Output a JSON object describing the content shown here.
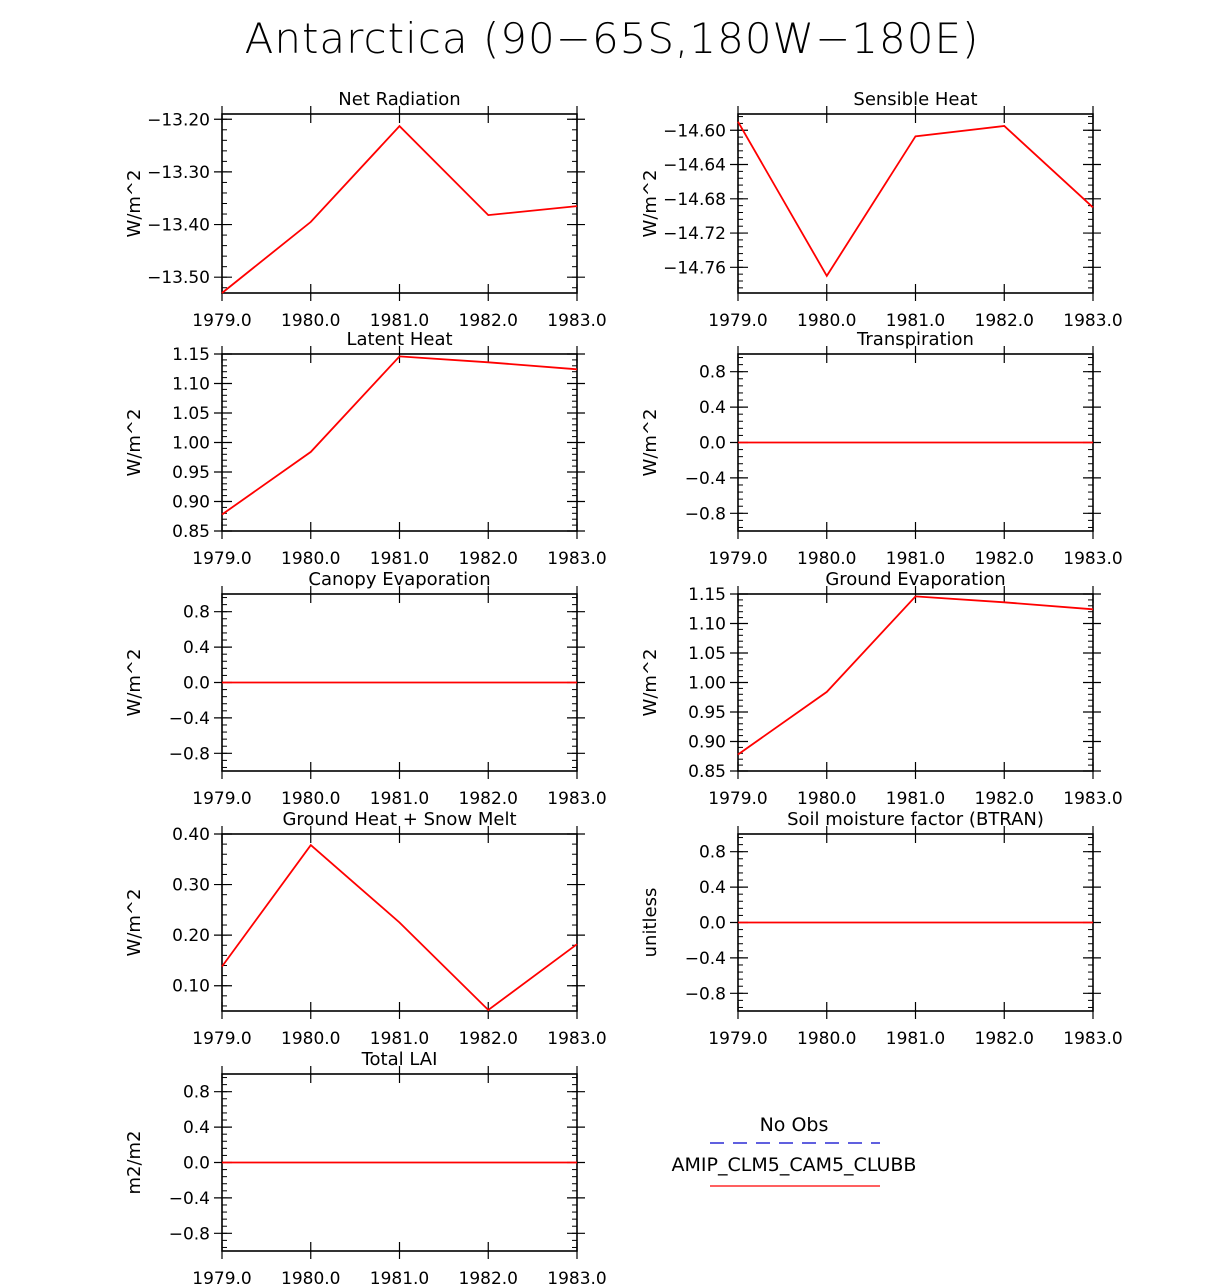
{
  "title": "Antarctica (90−65S,180W−180E)",
  "colors": {
    "series": "#ff0000",
    "obs": "#0000cc",
    "axis": "#000000"
  },
  "legend": {
    "obs_label": "No Obs",
    "model_label": "AMIP_CLM5_CAM5_CLUBB"
  },
  "chart_data": [
    {
      "type": "line",
      "title": "Net Radiation",
      "ylabel": "W/m^2",
      "x": [
        1979,
        1980,
        1981,
        1982,
        1983
      ],
      "xticks": [
        "1979.0",
        "1980.0",
        "1981.0",
        "1982.0",
        "1983.0"
      ],
      "ylim": [
        -13.53,
        -13.19
      ],
      "yticks": [
        -13.5,
        -13.4,
        -13.3,
        -13.2
      ],
      "ytick_labels": [
        "−13.50",
        "−13.40",
        "−13.30",
        "−13.20"
      ],
      "series": [
        {
          "values": [
            -13.53,
            -13.395,
            -13.213,
            -13.382,
            -13.365
          ]
        }
      ]
    },
    {
      "type": "line",
      "title": "Sensible Heat",
      "ylabel": "W/m^2",
      "x": [
        1979,
        1980,
        1981,
        1982,
        1983
      ],
      "xticks": [
        "1979.0",
        "1980.0",
        "1981.0",
        "1982.0",
        "1983.0"
      ],
      "ylim": [
        -14.79,
        -14.581
      ],
      "yticks": [
        -14.76,
        -14.72,
        -14.68,
        -14.64,
        -14.6
      ],
      "ytick_labels": [
        "−14.76",
        "−14.72",
        "−14.68",
        "−14.64",
        "−14.60"
      ],
      "series": [
        {
          "values": [
            -14.59,
            -14.77,
            -14.607,
            -14.595,
            -14.69
          ]
        }
      ]
    },
    {
      "type": "line",
      "title": "Latent Heat",
      "ylabel": "W/m^2",
      "x": [
        1979,
        1980,
        1981,
        1982,
        1983
      ],
      "xticks": [
        "1979.0",
        "1980.0",
        "1981.0",
        "1982.0",
        "1983.0"
      ],
      "ylim": [
        0.85,
        1.15
      ],
      "yticks": [
        0.85,
        0.9,
        0.95,
        1.0,
        1.05,
        1.1,
        1.15
      ],
      "ytick_labels": [
        "0.85",
        "0.90",
        "0.95",
        "1.00",
        "1.05",
        "1.10",
        "1.15"
      ],
      "series": [
        {
          "values": [
            0.878,
            0.984,
            1.146,
            1.136,
            1.124
          ]
        }
      ]
    },
    {
      "type": "line",
      "title": "Transpiration",
      "ylabel": "W/m^2",
      "x": [
        1979,
        1980,
        1981,
        1982,
        1983
      ],
      "xticks": [
        "1979.0",
        "1980.0",
        "1981.0",
        "1982.0",
        "1983.0"
      ],
      "ylim": [
        -1.0,
        1.0
      ],
      "yticks": [
        -0.8,
        -0.4,
        0.0,
        0.4,
        0.8
      ],
      "ytick_labels": [
        "−0.8",
        "−0.4",
        "0.0",
        "0.4",
        "0.8"
      ],
      "series": [
        {
          "values": [
            0,
            0,
            0,
            0,
            0
          ]
        }
      ]
    },
    {
      "type": "line",
      "title": "Canopy Evaporation",
      "ylabel": "W/m^2",
      "x": [
        1979,
        1980,
        1981,
        1982,
        1983
      ],
      "xticks": [
        "1979.0",
        "1980.0",
        "1981.0",
        "1982.0",
        "1983.0"
      ],
      "ylim": [
        -1.0,
        1.0
      ],
      "yticks": [
        -0.8,
        -0.4,
        0.0,
        0.4,
        0.8
      ],
      "ytick_labels": [
        "−0.8",
        "−0.4",
        "0.0",
        "0.4",
        "0.8"
      ],
      "series": [
        {
          "values": [
            0,
            0,
            0,
            0,
            0
          ]
        }
      ]
    },
    {
      "type": "line",
      "title": "Ground Evaporation",
      "ylabel": "W/m^2",
      "x": [
        1979,
        1980,
        1981,
        1982,
        1983
      ],
      "xticks": [
        "1979.0",
        "1980.0",
        "1981.0",
        "1982.0",
        "1983.0"
      ],
      "ylim": [
        0.85,
        1.15
      ],
      "yticks": [
        0.85,
        0.9,
        0.95,
        1.0,
        1.05,
        1.1,
        1.15
      ],
      "ytick_labels": [
        "0.85",
        "0.90",
        "0.95",
        "1.00",
        "1.05",
        "1.10",
        "1.15"
      ],
      "series": [
        {
          "values": [
            0.878,
            0.984,
            1.146,
            1.136,
            1.124
          ]
        }
      ]
    },
    {
      "type": "line",
      "title": "Ground Heat + Snow Melt",
      "ylabel": "W/m^2",
      "x": [
        1979,
        1980,
        1981,
        1982,
        1983
      ],
      "xticks": [
        "1979.0",
        "1980.0",
        "1981.0",
        "1982.0",
        "1983.0"
      ],
      "ylim": [
        0.05,
        0.4
      ],
      "yticks": [
        0.1,
        0.2,
        0.3,
        0.4
      ],
      "ytick_labels": [
        "0.10",
        "0.20",
        "0.30",
        "0.40"
      ],
      "series": [
        {
          "values": [
            0.138,
            0.378,
            0.225,
            0.052,
            0.182
          ]
        }
      ]
    },
    {
      "type": "line",
      "title": "Soil moisture factor (BTRAN)",
      "ylabel": "unitless",
      "x": [
        1979,
        1980,
        1981,
        1982,
        1983
      ],
      "xticks": [
        "1979.0",
        "1980.0",
        "1981.0",
        "1982.0",
        "1983.0"
      ],
      "ylim": [
        -1.0,
        1.0
      ],
      "yticks": [
        -0.8,
        -0.4,
        0.0,
        0.4,
        0.8
      ],
      "ytick_labels": [
        "−0.8",
        "−0.4",
        "0.0",
        "0.4",
        "0.8"
      ],
      "series": [
        {
          "values": [
            0,
            0,
            0,
            0,
            0
          ]
        }
      ]
    },
    {
      "type": "line",
      "title": "Total LAI",
      "ylabel": "m2/m2",
      "x": [
        1979,
        1980,
        1981,
        1982,
        1983
      ],
      "xticks": [
        "1979.0",
        "1980.0",
        "1981.0",
        "1982.0",
        "1983.0"
      ],
      "ylim": [
        -1.0,
        1.0
      ],
      "yticks": [
        -0.8,
        -0.4,
        0.0,
        0.4,
        0.8
      ],
      "ytick_labels": [
        "−0.8",
        "−0.4",
        "0.0",
        "0.4",
        "0.8"
      ],
      "series": [
        {
          "values": [
            0,
            0,
            0,
            0,
            0
          ]
        }
      ]
    }
  ]
}
